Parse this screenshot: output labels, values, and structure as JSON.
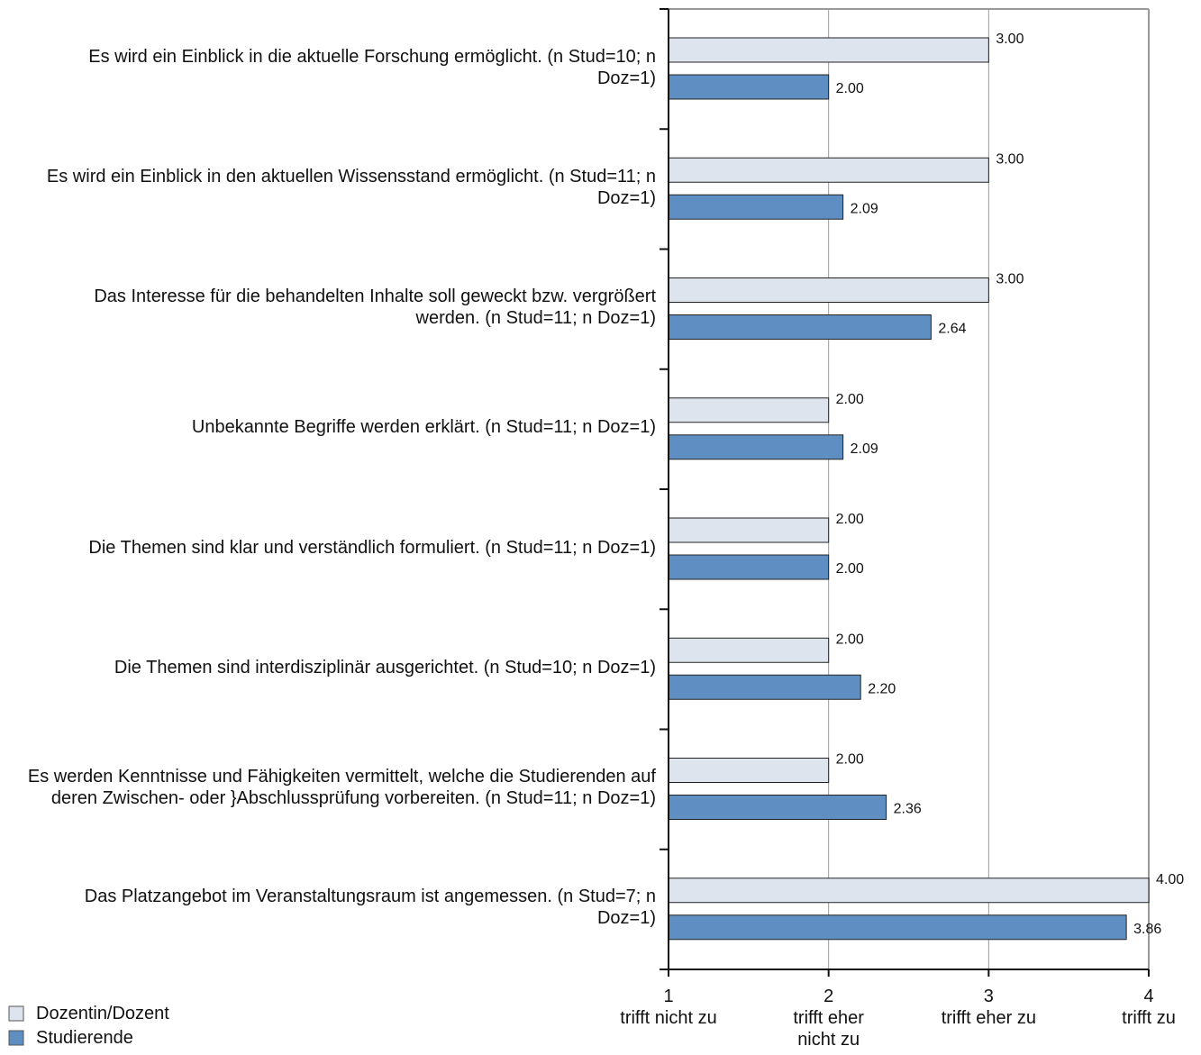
{
  "chart_data": {
    "type": "barh",
    "categories": [
      "Es wird ein Einblick in die aktuelle Forschung ermöglicht.  (n Stud=10; n  Doz=1)",
      "Es wird ein Einblick in den aktuellen Wissensstand ermöglicht.  (n Stud=11; n  Doz=1)",
      "Das Interesse für die behandelten Inhalte soll geweckt bzw. vergrößert werden.  (n Stud=11; n  Doz=1)",
      "Unbekannte Begriffe werden erklärt.  (n Stud=11; n Doz=1)",
      "Die Themen sind klar und verständlich formuliert.  (n Stud=11; n  Doz=1)",
      "Die Themen sind interdisziplinär ausgerichtet.  (n Stud=10; n Doz=1)",
      "Es werden Kenntnisse und Fähigkeiten vermittelt, welche die Studierenden auf deren Zwischen- oder }Abschlussprüfung vorbereiten.  (n Stud=11; n  Doz=1)",
      "Das Platzangebot im Veranstaltungsraum ist angemessen.  (n Stud=7; n  Doz=1)"
    ],
    "series": [
      {
        "name": "Dozentin/Dozent",
        "color": "#dee4ee",
        "values": [
          3,
          3,
          3,
          2,
          2,
          2,
          2,
          4
        ],
        "value_labels": [
          "3.00",
          "3.00",
          "3.00",
          "2.00",
          "2.00",
          "2.00",
          "2.00",
          "4.00"
        ]
      },
      {
        "name": "Studierende",
        "color": "#5f8ec2",
        "values": [
          2,
          2.09,
          2.64,
          2.09,
          2,
          2.2,
          2.36,
          3.86
        ],
        "value_labels": [
          "2.00",
          "2.09",
          "2.64",
          "2.09",
          "2.00",
          "2.20",
          "2.36",
          "3.86"
        ]
      }
    ],
    "xlim": [
      1,
      4
    ],
    "xticks": [
      1,
      2,
      3,
      4
    ],
    "scale_labels": [
      "trifft nicht zu",
      "trifft eher nicht  zu",
      "trifft eher zu",
      "trifft zu"
    ],
    "grid": true,
    "legend": "bottom-left"
  }
}
